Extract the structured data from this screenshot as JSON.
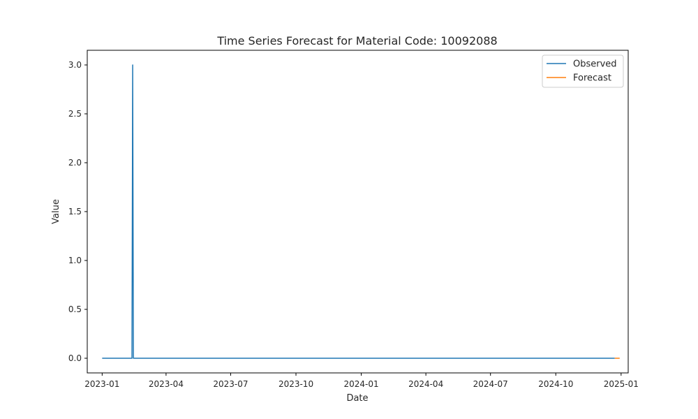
{
  "chart_data": {
    "type": "line",
    "title": "Time Series Forecast for Material Code: 10092088",
    "xlabel": "Date",
    "ylabel": "Value",
    "xlim": [
      "2022-12-11",
      "2025-01-11"
    ],
    "ylim": [
      -0.15,
      3.15
    ],
    "x_ticks": [
      "2023-01",
      "2023-04",
      "2023-07",
      "2023-10",
      "2024-01",
      "2024-04",
      "2024-07",
      "2024-10",
      "2025-01"
    ],
    "y_ticks": [
      "0.0",
      "0.5",
      "1.0",
      "1.5",
      "2.0",
      "2.5",
      "3.0"
    ],
    "grid": false,
    "legend_position": "top-right",
    "series": [
      {
        "name": "Observed",
        "color": "#1f77b4",
        "points": [
          [
            "2023-01-01",
            0
          ],
          [
            "2023-02-12",
            0
          ],
          [
            "2023-02-13",
            3.0
          ],
          [
            "2023-02-14",
            0
          ],
          [
            "2024-12-23",
            0
          ]
        ]
      },
      {
        "name": "Forecast",
        "color": "#ff7f0e",
        "points": [
          [
            "2024-12-23",
            0
          ],
          [
            "2024-12-30",
            0
          ]
        ]
      }
    ]
  }
}
